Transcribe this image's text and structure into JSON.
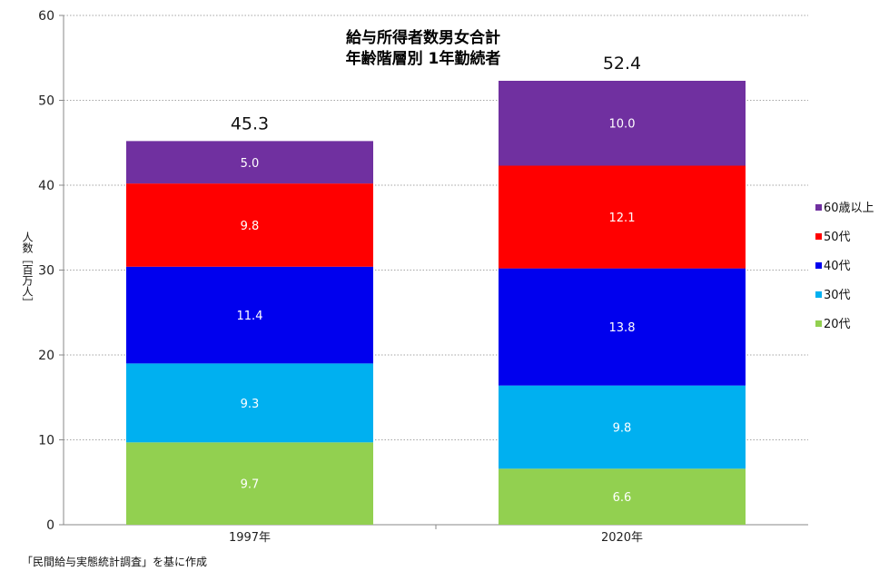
{
  "chart_data": {
    "type": "bar",
    "stacked": true,
    "title_lines": [
      "給与所得者数男女合計",
      "年齢階層別 1年勤続者"
    ],
    "ylabel": "人数［百万人］",
    "ylim": [
      0,
      60
    ],
    "yticks": [
      0,
      10,
      20,
      30,
      40,
      50,
      60
    ],
    "grid": true,
    "legend_position": "right",
    "categories": [
      "1997年",
      "2020年"
    ],
    "series": [
      {
        "name": "20代",
        "color": "#92d050",
        "values": [
          9.7,
          6.6
        ]
      },
      {
        "name": "30代",
        "color": "#00b0f0",
        "values": [
          9.3,
          9.8
        ]
      },
      {
        "name": "40代",
        "color": "#0000ee",
        "values": [
          11.4,
          13.8
        ]
      },
      {
        "name": "50代",
        "color": "#ff0000",
        "values": [
          9.8,
          12.1
        ]
      },
      {
        "name": "60歳以上",
        "color": "#7030a0",
        "values": [
          5.0,
          10.0
        ]
      }
    ],
    "totals": [
      45.3,
      52.4
    ],
    "value_labels": [
      [
        "9.7",
        "9.3",
        "11.4",
        "9.8",
        "5.0"
      ],
      [
        "6.6",
        "9.8",
        "13.8",
        "12.1",
        "10.0"
      ]
    ],
    "total_labels": [
      "45.3",
      "52.4"
    ]
  },
  "source_note": "「民間給与実態統計調査」を基に作成"
}
